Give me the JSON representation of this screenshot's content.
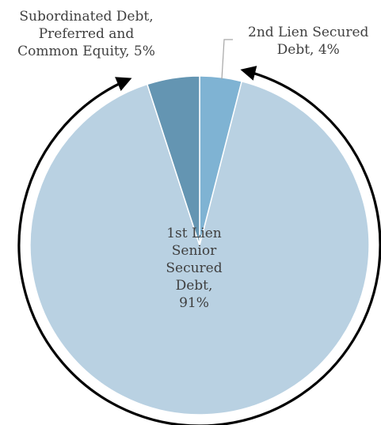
{
  "chart_data": {
    "type": "pie",
    "title": "",
    "slices": [
      {
        "label_lines": [
          "2nd Lien Secured",
          "Debt, 4%"
        ],
        "value": 4,
        "color": "#7fb3d3"
      },
      {
        "label_lines": [
          "1st Lien",
          "Senior",
          "Secured",
          "Debt,",
          "91%"
        ],
        "value": 91,
        "color": "#b9d1e2"
      },
      {
        "label_lines": [
          "Subordinated Debt,",
          "Preferred and",
          "Common Equity, 5%"
        ],
        "value": 5,
        "color": "#6495b2"
      }
    ],
    "annotations": [
      "curved arrow encircling pie, pointing to top-right and top-left"
    ],
    "colors": {
      "slice_border": "#ffffff",
      "arrow": "#000000",
      "leader_line": "#a6a6a6"
    }
  }
}
